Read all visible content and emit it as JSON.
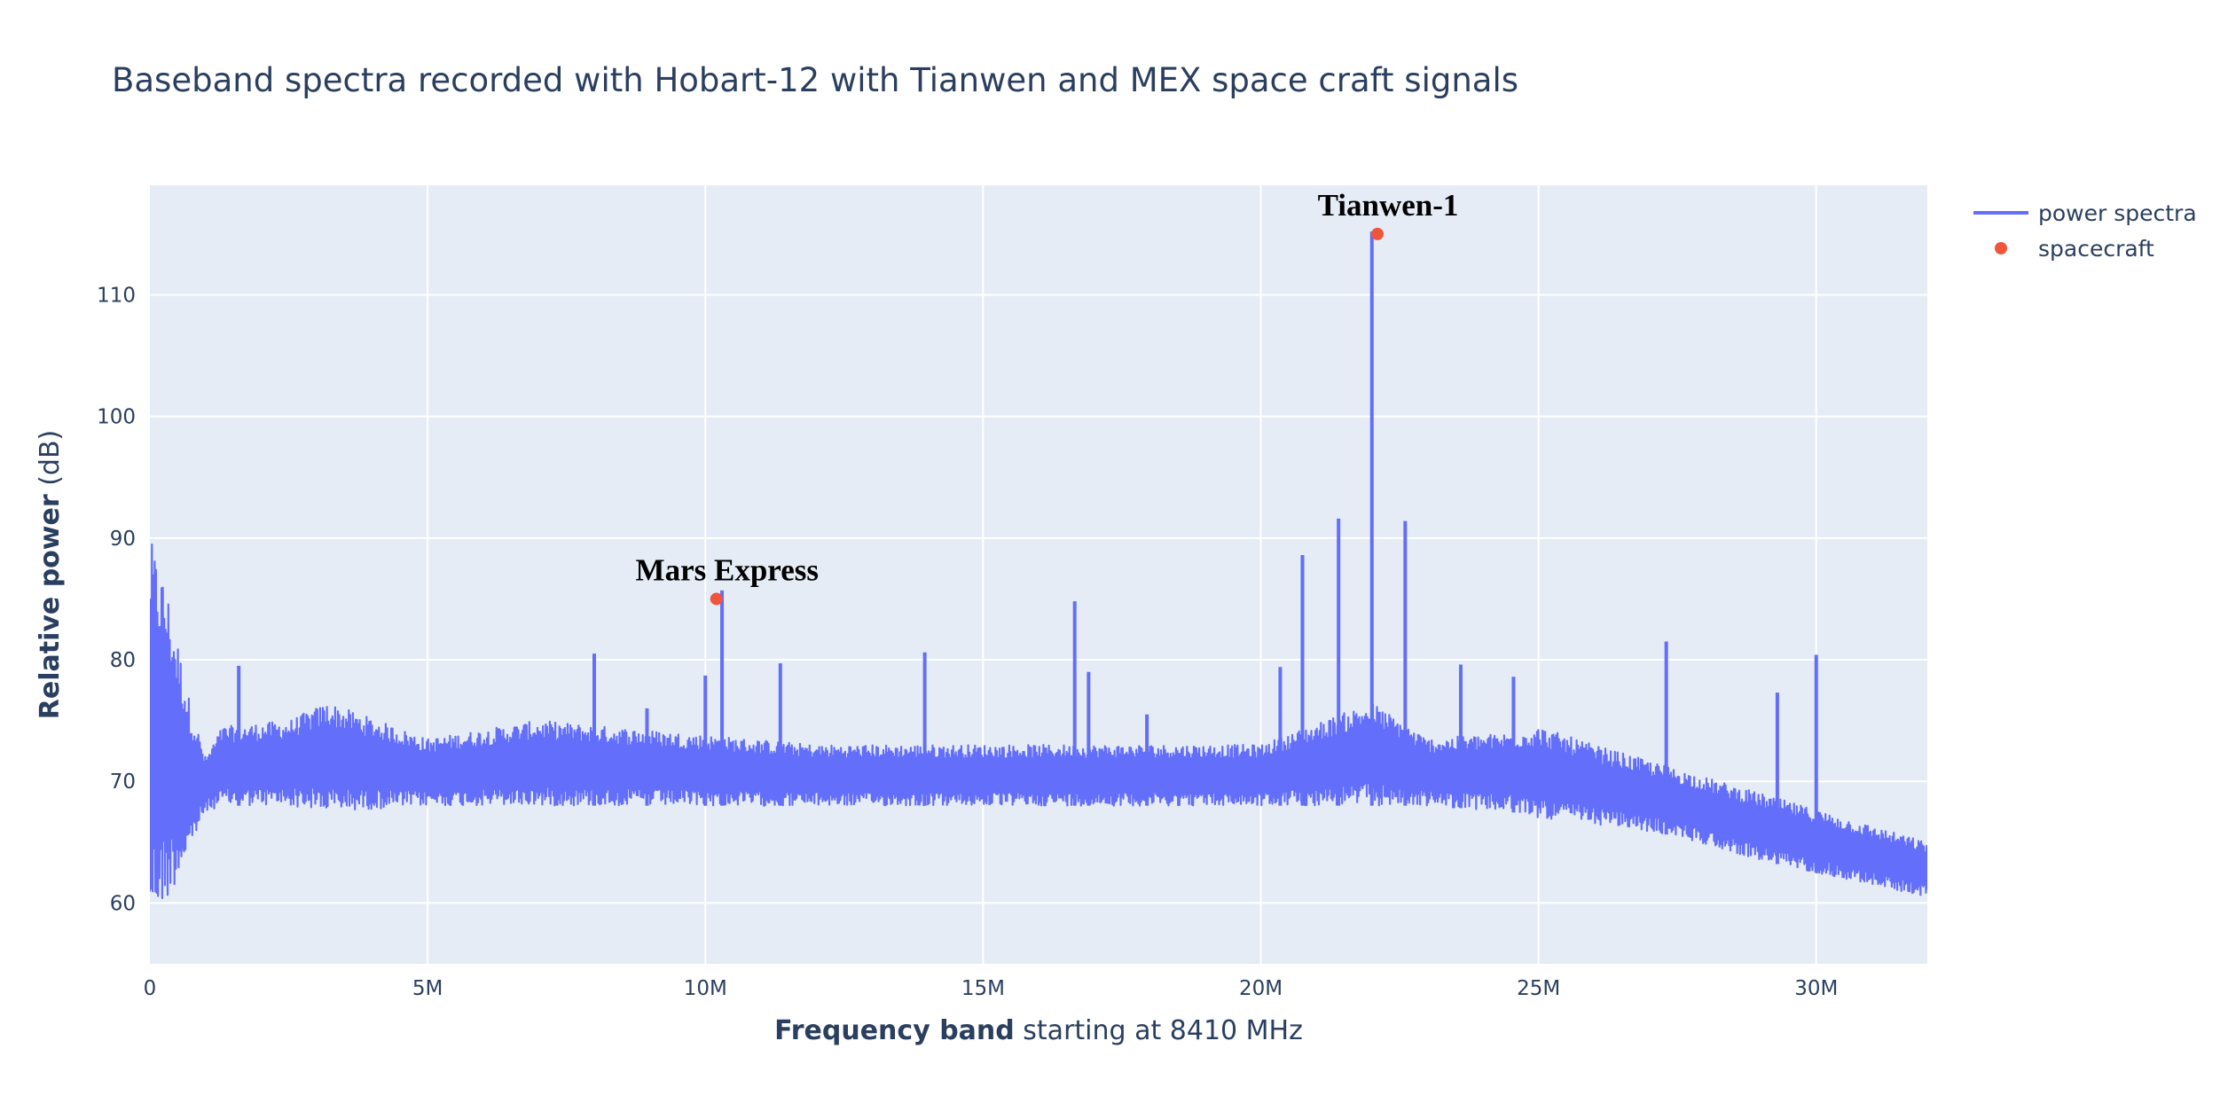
{
  "chart_data": {
    "type": "line",
    "title": "Baseband spectra recorded with Hobart-12 with Tianwen and MEX space craft signals",
    "xlabel_bold": "Frequency band",
    "xlabel_rest": " starting at 8410 MHz",
    "ylabel_bold": "Relative power",
    "ylabel_rest": " (dB)",
    "xlim": [
      0,
      32000000
    ],
    "ylim": [
      55,
      119
    ],
    "x_ticks": [
      0,
      5000000,
      10000000,
      15000000,
      20000000,
      25000000,
      30000000
    ],
    "x_tick_labels": [
      "0",
      "5M",
      "10M",
      "15M",
      "20M",
      "25M",
      "30M"
    ],
    "y_ticks": [
      60,
      70,
      80,
      90,
      100,
      110
    ],
    "y_tick_labels": [
      "60",
      "70",
      "80",
      "90",
      "100",
      "110"
    ],
    "grid": true,
    "legend_position": "top-right",
    "colors": {
      "spectrum": "#636efa",
      "spacecraft": "#ef553b",
      "plot_bg": "#e5ecf6",
      "grid": "#ffffff",
      "text": "#2a3f5f"
    },
    "series": [
      {
        "name": "power spectra",
        "kind": "line",
        "baseline_envelope": [
          {
            "x": 0,
            "low": 58.5,
            "high": 90
          },
          {
            "x": 300000,
            "low": 60,
            "high": 86
          },
          {
            "x": 700000,
            "low": 64,
            "high": 77
          },
          {
            "x": 1000000,
            "low": 67.5,
            "high": 72
          },
          {
            "x": 1300000,
            "low": 68,
            "high": 74.5
          },
          {
            "x": 2500000,
            "low": 68,
            "high": 75
          },
          {
            "x": 3200000,
            "low": 67.5,
            "high": 76.5
          },
          {
            "x": 5000000,
            "low": 68,
            "high": 73.5
          },
          {
            "x": 7000000,
            "low": 68,
            "high": 75
          },
          {
            "x": 9500000,
            "low": 68,
            "high": 74
          },
          {
            "x": 12000000,
            "low": 68,
            "high": 73
          },
          {
            "x": 20000000,
            "low": 68,
            "high": 73
          },
          {
            "x": 22000000,
            "low": 68,
            "high": 76.5
          },
          {
            "x": 23000000,
            "low": 68,
            "high": 73.5
          },
          {
            "x": 24500000,
            "low": 67.5,
            "high": 74
          },
          {
            "x": 25000000,
            "low": 67,
            "high": 74.5
          },
          {
            "x": 26000000,
            "low": 66.5,
            "high": 73
          },
          {
            "x": 27500000,
            "low": 65.5,
            "high": 71
          },
          {
            "x": 29000000,
            "low": 63.5,
            "high": 69
          },
          {
            "x": 30500000,
            "low": 62,
            "high": 67
          },
          {
            "x": 32000000,
            "low": 60.5,
            "high": 65
          }
        ],
        "spikes": [
          {
            "x": 1600000,
            "y": 79.5
          },
          {
            "x": 8000000,
            "y": 80.5
          },
          {
            "x": 8950000,
            "y": 76
          },
          {
            "x": 10000000,
            "y": 78.7
          },
          {
            "x": 10300000,
            "y": 85.7
          },
          {
            "x": 11350000,
            "y": 79.7
          },
          {
            "x": 13950000,
            "y": 80.6
          },
          {
            "x": 16650000,
            "y": 84.8
          },
          {
            "x": 16900000,
            "y": 79
          },
          {
            "x": 17950000,
            "y": 75.5
          },
          {
            "x": 20350000,
            "y": 79.4
          },
          {
            "x": 20750000,
            "y": 88.6
          },
          {
            "x": 21400000,
            "y": 91.6
          },
          {
            "x": 22000000,
            "y": 115.2
          },
          {
            "x": 22600000,
            "y": 91.4
          },
          {
            "x": 23600000,
            "y": 79.6
          },
          {
            "x": 24550000,
            "y": 78.6
          },
          {
            "x": 27300000,
            "y": 81.5
          },
          {
            "x": 29300000,
            "y": 77.3
          },
          {
            "x": 30000000,
            "y": 80.4
          }
        ]
      },
      {
        "name": "spacecraft",
        "kind": "markers",
        "points": [
          {
            "x": 10200000,
            "y": 85,
            "label": "Mars Express"
          },
          {
            "x": 22100000,
            "y": 115,
            "label": "Tianwen-1"
          }
        ]
      }
    ]
  }
}
